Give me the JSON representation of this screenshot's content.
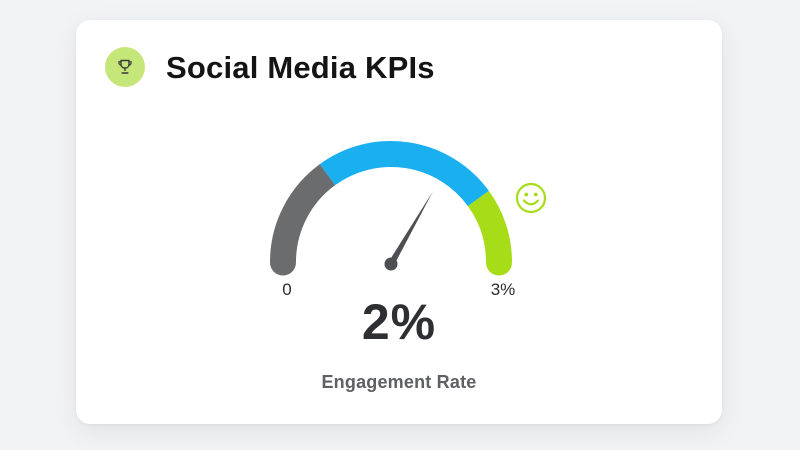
{
  "card": {
    "title": "Social Media KPIs",
    "icon": "trophy-icon"
  },
  "gauge": {
    "min_label": "0",
    "max_label": "3%",
    "value_label": "2%",
    "metric": "Engagement Rate",
    "value": 2,
    "min": 0,
    "max": 3,
    "segments": [
      {
        "from": 0,
        "to": 0.9,
        "color": "#6b6c6e"
      },
      {
        "from": 0.9,
        "to": 2.4,
        "color": "#1ab0f0"
      },
      {
        "from": 2.4,
        "to": 3,
        "color": "#a6dd18"
      }
    ],
    "status_icon": "smiley-icon",
    "status_color": "#a6dd18"
  }
}
